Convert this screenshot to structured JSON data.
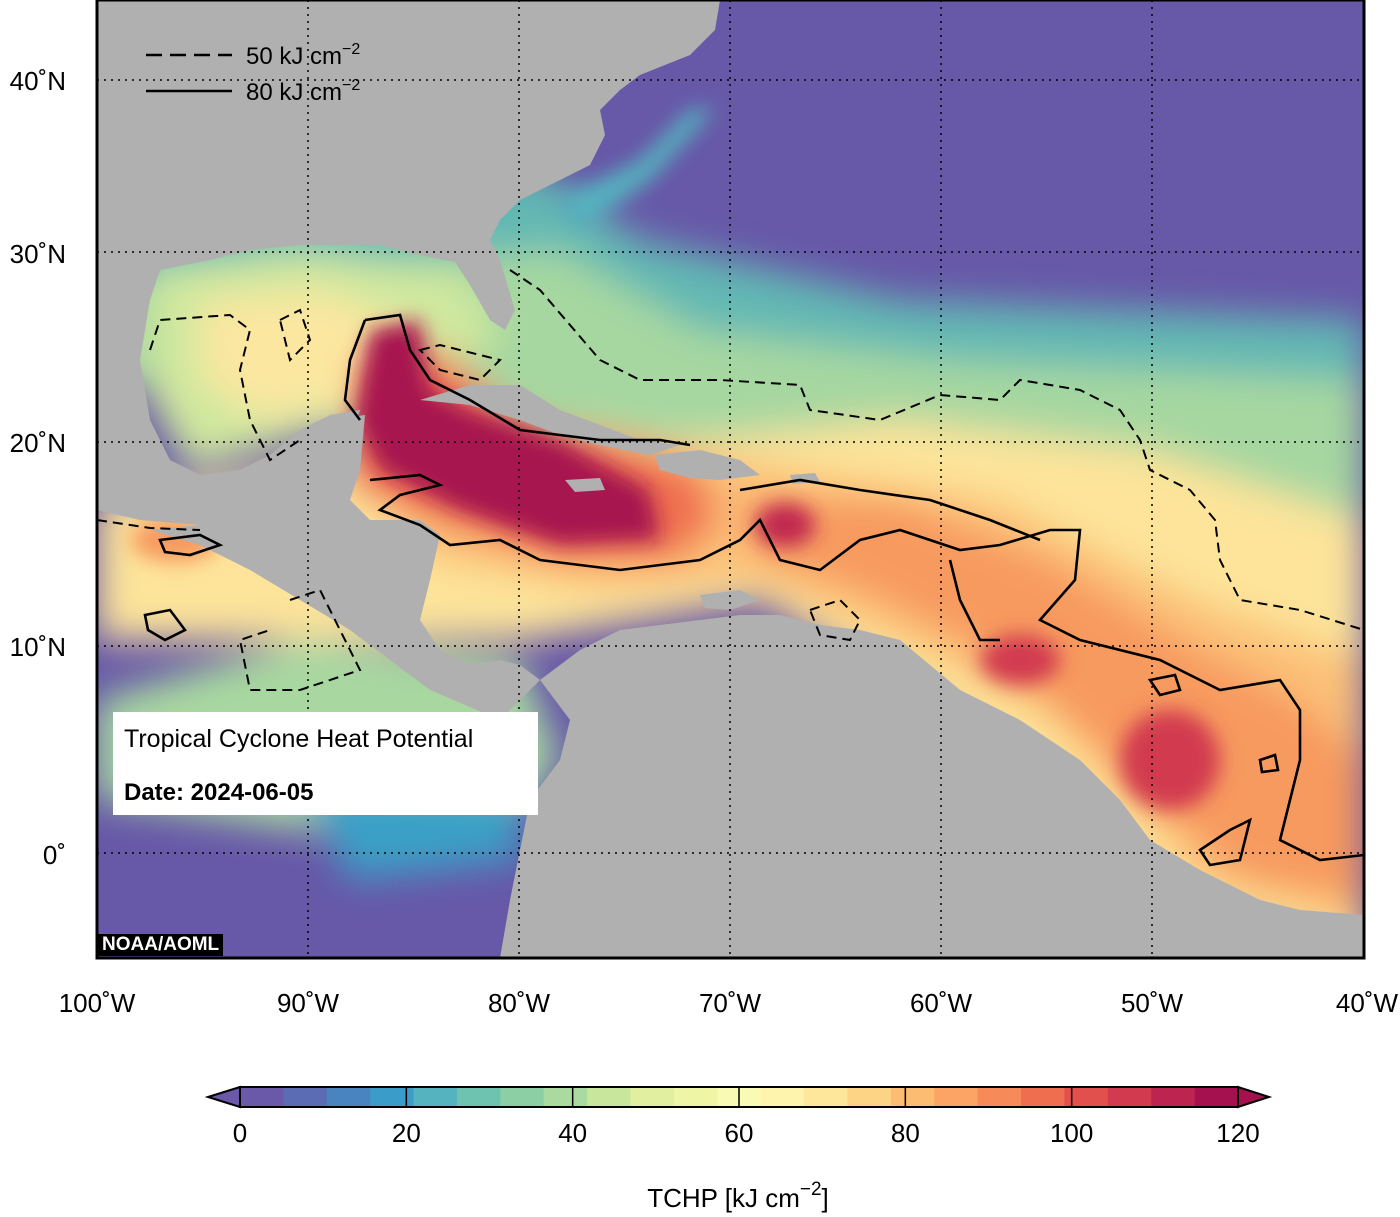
{
  "map": {
    "title": "Tropical Cyclone Heat Potential",
    "date_label": "Date: 2024-06-05",
    "credit": "NOAA/AOML",
    "lon_ticks": [
      "100˚W",
      "90˚W",
      "80˚W",
      "70˚W",
      "60˚W",
      "50˚W",
      "40˚W"
    ],
    "lat_ticks": [
      "40˚N",
      "30˚N",
      "20˚N",
      "10˚N",
      "0˚"
    ],
    "lon_range": [
      -100,
      -40
    ],
    "lat_range": [
      -5,
      45
    ],
    "legend": [
      {
        "style": "dashed",
        "label": "50 kJ cm",
        "exp": "−2"
      },
      {
        "style": "solid",
        "label": "80 kJ cm",
        "exp": "−2"
      }
    ],
    "colorbar": {
      "label": "TCHP [kJ cm",
      "label_exp": "−2",
      "label_close": "]",
      "ticks": [
        "0",
        "20",
        "40",
        "60",
        "80",
        "100",
        "120"
      ],
      "range": [
        0,
        120
      ],
      "colors": [
        "#6a58a8",
        "#5b6cb4",
        "#4a84c0",
        "#3a9cc8",
        "#55b3bf",
        "#6ec3b0",
        "#8ccfa5",
        "#aadaa0",
        "#c8e69c",
        "#e0f0a0",
        "#eef6a6",
        "#f9fab4",
        "#fef4ae",
        "#fee69a",
        "#fdd486",
        "#fcbd72",
        "#fba465",
        "#f68a59",
        "#ef6e50",
        "#e2504d",
        "#d23a4f",
        "#bd2550",
        "#a5114f"
      ]
    },
    "colors": {
      "deep_ocean": "#6758a8",
      "land": "#b0b0b0",
      "hot_core": "#a8124f"
    }
  }
}
